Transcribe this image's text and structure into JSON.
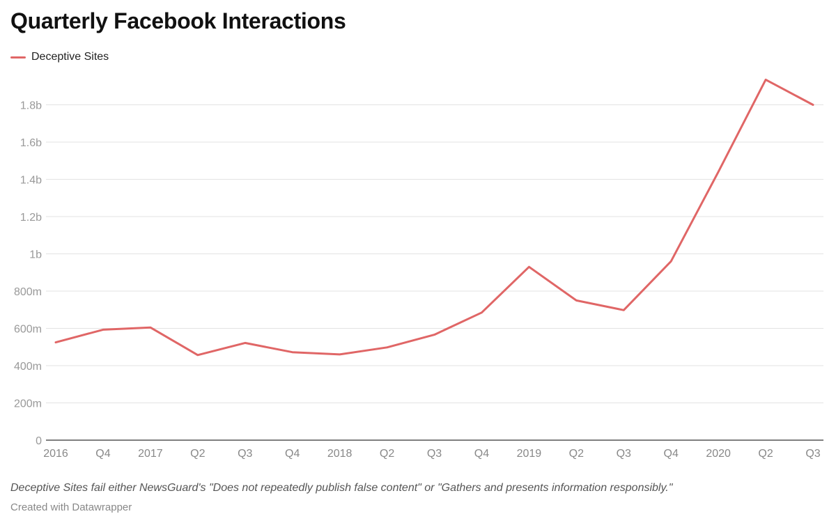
{
  "chart_data": {
    "type": "line",
    "title": "Quarterly Facebook Interactions",
    "categories": [
      "2016",
      "Q4",
      "2017",
      "Q2",
      "Q3",
      "Q4",
      "2018",
      "Q2",
      "Q3",
      "Q4",
      "2019",
      "Q2",
      "Q3",
      "Q4",
      "2020",
      "Q2",
      "Q3"
    ],
    "series": [
      {
        "name": "Deceptive Sites",
        "color": "#e06666",
        "values": [
          0.525,
          0.593,
          0.605,
          0.457,
          0.522,
          0.472,
          0.46,
          0.498,
          0.566,
          0.685,
          0.93,
          0.75,
          0.698,
          0.96,
          1.44,
          1.935,
          1.8
        ]
      }
    ],
    "y_ticks": [
      {
        "value": 0,
        "label": "0"
      },
      {
        "value": 0.2,
        "label": "200m"
      },
      {
        "value": 0.4,
        "label": "400m"
      },
      {
        "value": 0.6,
        "label": "600m"
      },
      {
        "value": 0.8,
        "label": "800m"
      },
      {
        "value": 1.0,
        "label": "1b"
      },
      {
        "value": 1.2,
        "label": "1.2b"
      },
      {
        "value": 1.4,
        "label": "1.4b"
      },
      {
        "value": 1.6,
        "label": "1.6b"
      },
      {
        "value": 1.8,
        "label": "1.8b"
      }
    ],
    "ylim": [
      0,
      2.0
    ],
    "grid": true,
    "legend_position": "top-left",
    "xlabel": "",
    "ylabel": ""
  },
  "legend": {
    "label": "Deceptive Sites",
    "color": "#e06666"
  },
  "notes": "Deceptive Sites fail either NewsGuard's \"Does not repeatedly publish false content\" or \"Gathers and presents information responsibly.\"",
  "credit": "Created with Datawrapper"
}
